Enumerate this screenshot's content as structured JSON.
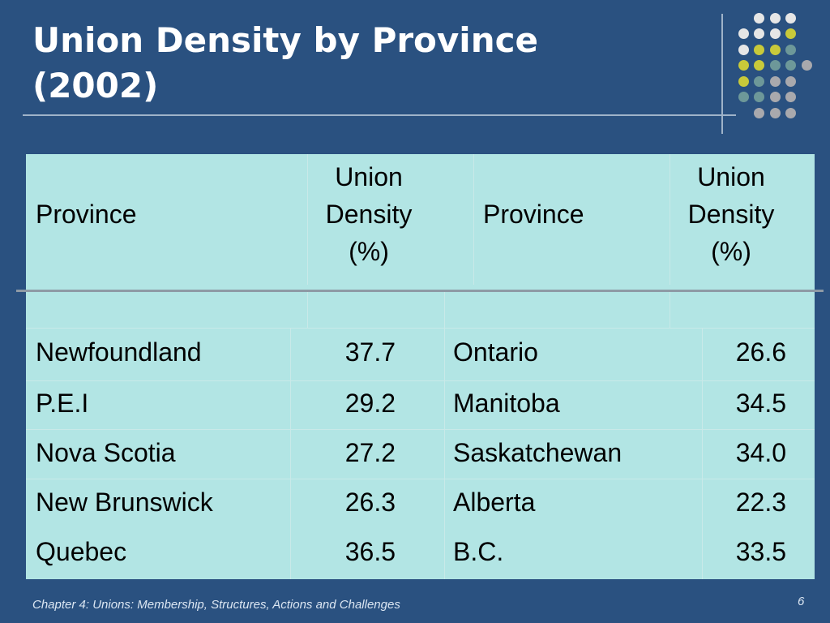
{
  "slide": {
    "title_line1": "Union Density by Province",
    "title_line2": "(2002)",
    "footer": "Chapter 4: Unions: Membership, Structures, Actions and Challenges",
    "page_number": "6"
  },
  "table": {
    "headers": {
      "province_left": "Province",
      "density_left": [
        "Union",
        "Density",
        "(%)"
      ],
      "province_right": "Province",
      "density_right": [
        "Union",
        "Density",
        "(%)"
      ]
    },
    "rows": [
      {
        "left_province": "Newfoundland",
        "left_density": "37.7",
        "right_province": "Ontario",
        "right_density": "26.6"
      },
      {
        "left_province": "P.E.I",
        "left_density": "29.2",
        "right_province": "Manitoba",
        "right_density": "34.5"
      },
      {
        "left_province": "Nova Scotia",
        "left_density": "27.2",
        "right_province": "Saskatchewan",
        "right_density": "34.0"
      },
      {
        "left_province": "New Brunswick",
        "left_density": "26.3",
        "right_province": "Alberta",
        "right_density": "22.3"
      },
      {
        "left_province": "Quebec",
        "left_density": "36.5",
        "right_province": "B.C.",
        "right_density": "33.5"
      }
    ]
  },
  "colors": {
    "background": "#2a5180",
    "table_fill": "#b2e5e4",
    "dot_white": "#e6e6e6",
    "dot_olive": "#c8c93a",
    "dot_teal": "#6d9899",
    "dot_gray": "#a9a9ad"
  }
}
